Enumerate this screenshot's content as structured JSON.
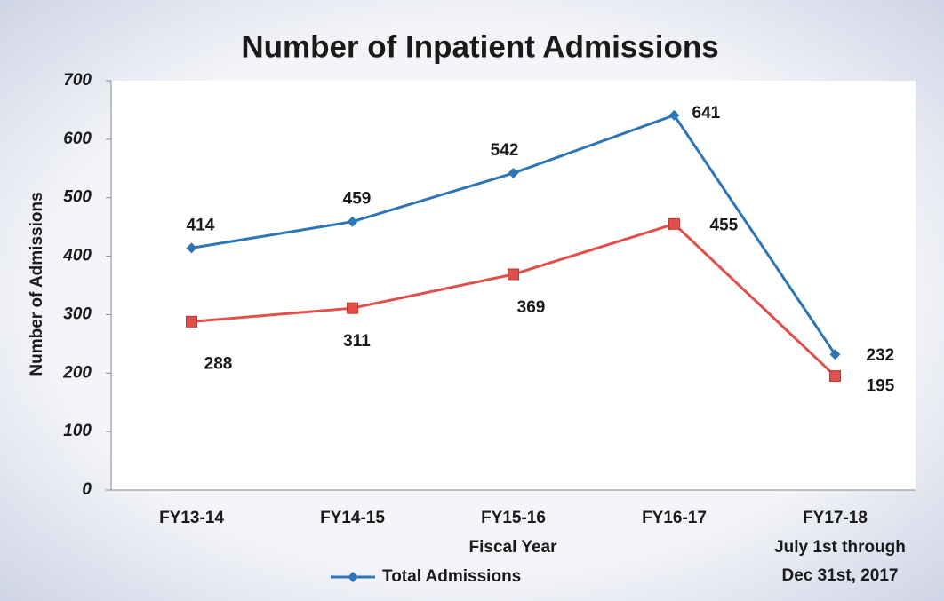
{
  "chart_data": {
    "type": "line",
    "title": "Number of Inpatient Admissions",
    "y_label": "Number of Admissions",
    "x_label": "Fiscal Year",
    "categories": [
      "FY13-14",
      "FY14-15",
      "FY15-16",
      "FY16-17",
      "FY17-18"
    ],
    "annotations": [
      "July 1st through",
      "Dec 31st, 2017"
    ],
    "series": [
      {
        "name": "Total Admissions",
        "color": "#2e75b6",
        "marker": "diamond",
        "values": [
          414,
          459,
          542,
          641,
          232
        ]
      },
      {
        "color": "#e0504a",
        "marker": "square",
        "values": [
          288,
          311,
          369,
          455,
          195
        ]
      }
    ],
    "ylim": [
      0,
      700
    ],
    "yticks": [
      0,
      100,
      200,
      300,
      400,
      500,
      600,
      700
    ],
    "legend": "bottom"
  }
}
